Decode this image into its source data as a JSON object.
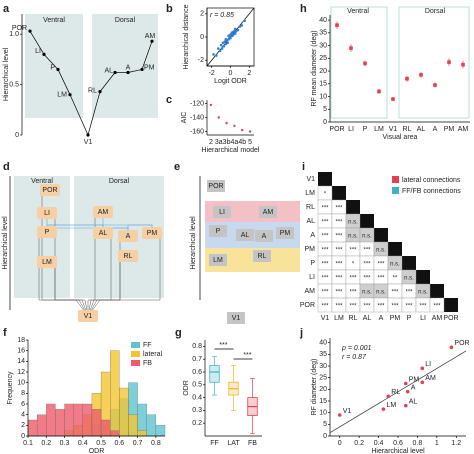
{
  "chart_data": [
    {
      "panel": "a",
      "type": "hierarchy",
      "ylabel": "Hierarchical level",
      "groups": [
        "Ventral",
        "Dorsal"
      ],
      "nodes": [
        "V1",
        "LM",
        "P",
        "LI",
        "POR",
        "RL",
        "AL",
        "A",
        "PM",
        "AM"
      ],
      "values": [
        0,
        0.4,
        0.65,
        0.8,
        1.03,
        0.43,
        0.62,
        0.62,
        0.65,
        0.93
      ],
      "ylim": [
        0,
        1.2
      ],
      "yticks": [
        0,
        0.5,
        {
          "value": 1,
          "label": "1.0"
        }
      ],
      "color": "#000000"
    },
    {
      "panel": "b",
      "type": "scatter",
      "xlabel": "Logit ODR",
      "ylabel": "Hierarchical distance",
      "annotations": [
        "r = 0.85"
      ],
      "x": [
        -1.8,
        -1.5,
        -1.3,
        -1.1,
        -1.0,
        -0.9,
        -0.8,
        -0.7,
        -0.6,
        -0.5,
        -0.5,
        -0.4,
        -0.3,
        -0.2,
        -0.2,
        -0.1,
        0,
        0,
        0.1,
        0.2,
        0.2,
        0.3,
        0.4,
        0.5,
        0.5,
        0.6,
        0.8,
        1.0,
        1.2,
        1.5
      ],
      "y": [
        -1.5,
        -1.6,
        -1.0,
        -1.2,
        -0.7,
        -1.0,
        -0.5,
        -0.8,
        -0.4,
        -0.6,
        -0.2,
        -0.3,
        -0.5,
        0.1,
        -0.2,
        0.0,
        0.2,
        -0.1,
        0.3,
        0.1,
        0.4,
        0.2,
        0.5,
        0.3,
        0.7,
        0.5,
        0.6,
        0.9,
        1.0,
        1.4
      ],
      "xlim": [
        -2.5,
        2.5
      ],
      "ylim": [
        -2.5,
        2.5
      ],
      "xticks": [
        -2,
        0,
        2
      ],
      "yticks": [
        -2,
        0,
        2
      ],
      "color": "#2f7fd6",
      "identity": true
    },
    {
      "panel": "c",
      "type": "dot",
      "xlabel": "Hierarchical model",
      "ylabel": "AIC",
      "categories": [
        "2",
        "3a",
        "3b",
        "4a",
        "4b",
        "5"
      ],
      "values": [
        -122,
        -140,
        -148,
        -152,
        -158,
        -160
      ],
      "ylim": [
        -165,
        -115
      ],
      "yticks": [
        -120,
        -140,
        -160
      ],
      "color": "#e5404f"
    },
    {
      "panel": "h",
      "type": "errorbar",
      "xlabel": "Visual area",
      "ylabel": "RF mean diameter (deg)",
      "groups": [
        "Ventral",
        "Dorsal"
      ],
      "categories": [
        "POR",
        "LI",
        "P",
        "LM",
        "V1",
        "RL",
        "AL",
        "A",
        "PM",
        "AM"
      ],
      "values": [
        38,
        29,
        23,
        12,
        9,
        17,
        18.5,
        14.5,
        23.5,
        22.5
      ],
      "errors": [
        1.5,
        1.5,
        1.2,
        1,
        0.8,
        1.2,
        1.2,
        1,
        1.5,
        1.5
      ],
      "ylim": [
        0,
        42
      ],
      "yticks": [
        0,
        5,
        10,
        15,
        20,
        25,
        30,
        35,
        40
      ],
      "color": "#e5404f"
    },
    {
      "panel": "f",
      "type": "histogram",
      "xlabel": "ODR",
      "ylabel": "Frequency",
      "bins": [
        0.1,
        0.15,
        0.2,
        0.25,
        0.3,
        0.35,
        0.4,
        0.45,
        0.5,
        0.55,
        0.6,
        0.65,
        0.7,
        0.75,
        0.8,
        0.85
      ],
      "series": [
        {
          "name": "FF",
          "color": "#5fc3cf",
          "values": [
            0,
            0,
            0,
            0,
            0,
            0,
            0,
            2,
            3,
            5,
            7,
            10,
            6,
            4,
            2
          ]
        },
        {
          "name": "lateral",
          "color": "#f2c530",
          "values": [
            0,
            0,
            0,
            0,
            1,
            2,
            4,
            8,
            12,
            16,
            9,
            4,
            1,
            0,
            0
          ]
        },
        {
          "name": "FB",
          "color": "#ee5b6a",
          "values": [
            3,
            4,
            6,
            5,
            6,
            6,
            6,
            5,
            3,
            1,
            0,
            0,
            0,
            0,
            0
          ]
        }
      ],
      "xlim": [
        0.1,
        0.85
      ],
      "xticks": [
        0.1,
        0.2,
        0.3,
        0.4,
        0.5,
        0.6,
        0.7,
        0.8
      ],
      "ylim": [
        0,
        18
      ],
      "yticks": [
        0,
        2,
        4,
        6,
        8,
        10,
        12,
        14,
        16,
        18
      ],
      "legend": "upper right"
    },
    {
      "panel": "g",
      "type": "box",
      "ylabel": "ODR",
      "categories": [
        "FF",
        "LAT",
        "FB"
      ],
      "q1": [
        0.52,
        0.42,
        0.26
      ],
      "median": [
        0.6,
        0.47,
        0.33
      ],
      "q3": [
        0.65,
        0.52,
        0.4
      ],
      "whisker_low": [
        0.42,
        0.3,
        0.12
      ],
      "whisker_high": [
        0.72,
        0.65,
        0.55
      ],
      "colors": [
        "#3bb3c3",
        "#f0b429",
        "#e5404f"
      ],
      "annotations": [
        "***",
        "***"
      ],
      "ylim": [
        0.1,
        0.85
      ],
      "yticks": [
        0.2,
        0.3,
        0.4,
        0.5,
        0.6,
        0.7,
        0.8
      ]
    },
    {
      "panel": "j",
      "type": "scatter",
      "xlabel": "Hierarchical level",
      "ylabel": "RF diameter (deg)",
      "annotations": [
        "p = 0.001",
        "r = 0.87"
      ],
      "labels": [
        "V1",
        "LM",
        "RL",
        "AL",
        "A",
        "PM",
        "AM",
        "LI",
        "POR"
      ],
      "x": [
        0.0,
        0.45,
        0.5,
        0.68,
        0.7,
        0.68,
        0.85,
        0.85,
        1.15
      ],
      "y": [
        9,
        11.5,
        17,
        13,
        19,
        22.5,
        23,
        29,
        38
      ],
      "xlim": [
        -0.1,
        1.3
      ],
      "xticks": [
        0,
        0.2,
        0.4,
        0.6,
        0.8,
        1,
        1.2
      ],
      "ylim": [
        0,
        42
      ],
      "yticks": [
        0,
        5,
        10,
        15,
        20,
        25,
        30,
        35,
        40
      ],
      "color": "#e5404f",
      "fit": true
    }
  ],
  "diagrams": {
    "d": {
      "panel": "d",
      "ylabel": "Hierarchical level",
      "groups": [
        "Ventral",
        "Dorsal"
      ],
      "nodes": [
        "POR",
        "LI",
        "P",
        "LM",
        "AM",
        "AL",
        "A",
        "PM",
        "RL",
        "V1"
      ]
    },
    "e": {
      "panel": "e",
      "ylabel": "Hierarchical level",
      "nodes": [
        "POR",
        "LI",
        "AM",
        "P",
        "AL",
        "A",
        "PM",
        "LM",
        "RL",
        "V1"
      ]
    },
    "i": {
      "panel": "i",
      "legend": [
        "lateral connections",
        "FF/FB connections"
      ],
      "legend_colors": [
        "#e5404f",
        "#3bb3c3"
      ],
      "labels": [
        "V1",
        "LM",
        "RL",
        "AL",
        "A",
        "PM",
        "P",
        "LI",
        "AM",
        "POR"
      ],
      "cells": [
        [],
        [
          "*"
        ],
        [
          "***",
          "***"
        ],
        [
          "***",
          "***",
          "n.s."
        ],
        [
          "***",
          "***",
          "n.s.",
          "n.s."
        ],
        [
          "***",
          "***",
          "***",
          "***",
          "n.s."
        ],
        [
          "***",
          "***",
          "*",
          "***",
          "***",
          "n.s."
        ],
        [
          "***",
          "***",
          "***",
          "***",
          "***",
          "**",
          "n.s."
        ],
        [
          "***",
          "***",
          "***",
          "n.s.",
          "n.s.",
          "***",
          "***",
          "n.s."
        ],
        [
          "***",
          "***",
          "***",
          "***",
          "***",
          "***",
          "***",
          "***",
          "***"
        ]
      ],
      "cell_colors": [
        [],
        [
          "#3bb3c3"
        ],
        [
          "#3bb3c3",
          "#3bb3c3"
        ],
        [
          "#3bb3c3",
          "#3bb3c3",
          "#e5404f"
        ],
        [
          "#3bb3c3",
          "#3bb3c3",
          "#e5404f",
          "#e5404f"
        ],
        [
          "#3bb3c3",
          "#3bb3c3",
          "#e5404f",
          "#e5404f",
          "#e5404f"
        ],
        [
          "#3bb3c3",
          "#3bb3c3",
          "#3bb3c3",
          "#e5404f",
          "#e5404f",
          "#e5404f"
        ],
        [
          "#3bb3c3",
          "#3bb3c3",
          "#3bb3c3",
          "#3bb3c3",
          "#e5404f",
          "#e5404f",
          "#e5404f"
        ],
        [
          "#3bb3c3",
          "#3bb3c3",
          "#3bb3c3",
          "#e5404f",
          "#e5404f",
          "#e5404f",
          "#e5404f",
          "#e5404f"
        ],
        [
          "#3bb3c3",
          "#3bb3c3",
          "#3bb3c3",
          "#3bb3c3",
          "#3bb3c3",
          "#3bb3c3",
          "#3bb3c3",
          "#3bb3c3",
          "#3bb3c3"
        ]
      ]
    }
  }
}
